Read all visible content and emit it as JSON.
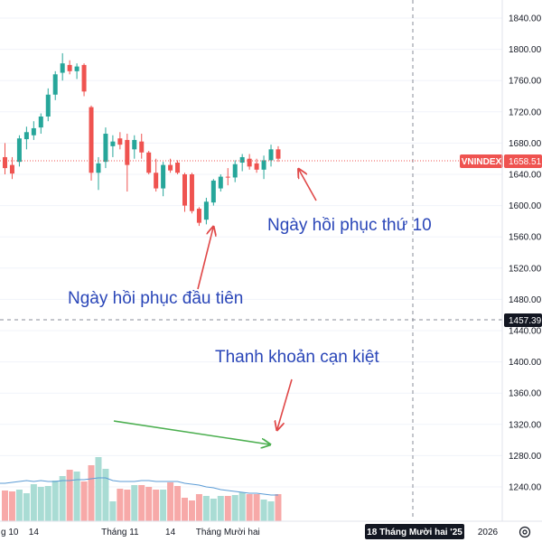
{
  "chart_data": {
    "type": "candlestick",
    "symbol": "VNINDEX",
    "last_price": "1658.51",
    "crosshair_price": "1457.39",
    "crosshair_date": "18 Tháng Mười hai '25",
    "price_ticks": [
      "1840.00",
      "1800.00",
      "1760.00",
      "1720.00",
      "1680.00",
      "1640.00",
      "1600.00",
      "1560.00",
      "1520.00",
      "1480.00",
      "1440.00",
      "1400.00",
      "1360.00",
      "1320.00",
      "1280.00",
      "1240.00"
    ],
    "x_labels": [
      {
        "label": "g 10",
        "index": 0
      },
      {
        "label": "14",
        "index": 4
      },
      {
        "label": "Tháng 11",
        "index": 16
      },
      {
        "label": "14",
        "index": 23
      },
      {
        "label": "Tháng Mười hai",
        "index": 31
      },
      {
        "label": "2026",
        "index": 49
      }
    ],
    "candles": [
      {
        "o": 1662,
        "h": 1680,
        "l": 1640,
        "c": 1648
      },
      {
        "o": 1652,
        "h": 1662,
        "l": 1634,
        "c": 1641
      },
      {
        "o": 1656,
        "h": 1690,
        "l": 1650,
        "c": 1686
      },
      {
        "o": 1685,
        "h": 1701,
        "l": 1672,
        "c": 1694
      },
      {
        "o": 1690,
        "h": 1708,
        "l": 1684,
        "c": 1699
      },
      {
        "o": 1700,
        "h": 1718,
        "l": 1692,
        "c": 1714
      },
      {
        "o": 1714,
        "h": 1750,
        "l": 1708,
        "c": 1742
      },
      {
        "o": 1742,
        "h": 1772,
        "l": 1735,
        "c": 1768
      },
      {
        "o": 1770,
        "h": 1795,
        "l": 1760,
        "c": 1782
      },
      {
        "o": 1780,
        "h": 1786,
        "l": 1768,
        "c": 1772
      },
      {
        "o": 1772,
        "h": 1782,
        "l": 1762,
        "c": 1778
      },
      {
        "o": 1780,
        "h": 1782,
        "l": 1740,
        "c": 1746
      },
      {
        "o": 1726,
        "h": 1728,
        "l": 1632,
        "c": 1642
      },
      {
        "o": 1642,
        "h": 1662,
        "l": 1620,
        "c": 1654
      },
      {
        "o": 1656,
        "h": 1700,
        "l": 1648,
        "c": 1692
      },
      {
        "o": 1676,
        "h": 1690,
        "l": 1662,
        "c": 1682
      },
      {
        "o": 1686,
        "h": 1694,
        "l": 1672,
        "c": 1678
      },
      {
        "o": 1684,
        "h": 1692,
        "l": 1618,
        "c": 1652
      },
      {
        "o": 1672,
        "h": 1690,
        "l": 1660,
        "c": 1684
      },
      {
        "o": 1682,
        "h": 1692,
        "l": 1660,
        "c": 1668
      },
      {
        "o": 1668,
        "h": 1670,
        "l": 1640,
        "c": 1642
      },
      {
        "o": 1642,
        "h": 1660,
        "l": 1618,
        "c": 1622
      },
      {
        "o": 1622,
        "h": 1656,
        "l": 1612,
        "c": 1652
      },
      {
        "o": 1652,
        "h": 1660,
        "l": 1642,
        "c": 1645
      },
      {
        "o": 1655,
        "h": 1658,
        "l": 1640,
        "c": 1642
      },
      {
        "o": 1640,
        "h": 1642,
        "l": 1592,
        "c": 1600
      },
      {
        "o": 1640,
        "h": 1642,
        "l": 1590,
        "c": 1593
      },
      {
        "o": 1596,
        "h": 1598,
        "l": 1574,
        "c": 1578
      },
      {
        "o": 1582,
        "h": 1610,
        "l": 1576,
        "c": 1605
      },
      {
        "o": 1604,
        "h": 1634,
        "l": 1600,
        "c": 1632
      },
      {
        "o": 1622,
        "h": 1640,
        "l": 1618,
        "c": 1637
      },
      {
        "o": 1637,
        "h": 1648,
        "l": 1626,
        "c": 1636
      },
      {
        "o": 1636,
        "h": 1658,
        "l": 1630,
        "c": 1653
      },
      {
        "o": 1655,
        "h": 1666,
        "l": 1644,
        "c": 1662
      },
      {
        "o": 1660,
        "h": 1666,
        "l": 1646,
        "c": 1650
      },
      {
        "o": 1654,
        "h": 1660,
        "l": 1642,
        "c": 1646
      },
      {
        "o": 1646,
        "h": 1664,
        "l": 1634,
        "c": 1658
      },
      {
        "o": 1658,
        "h": 1678,
        "l": 1650,
        "c": 1672
      },
      {
        "o": 1672,
        "h": 1676,
        "l": 1656,
        "c": 1660
      }
    ],
    "volume": [
      0.34,
      0.33,
      0.35,
      0.31,
      0.41,
      0.38,
      0.39,
      0.45,
      0.5,
      0.57,
      0.55,
      0.44,
      0.62,
      0.71,
      0.58,
      0.22,
      0.36,
      0.35,
      0.4,
      0.4,
      0.38,
      0.35,
      0.35,
      0.43,
      0.39,
      0.26,
      0.23,
      0.3,
      0.28,
      0.25,
      0.28,
      0.28,
      0.29,
      0.32,
      0.3,
      0.3,
      0.24,
      0.22,
      0.3
    ],
    "volume_ma": [
      0.42,
      0.43,
      0.44,
      0.45,
      0.44,
      0.45,
      0.44,
      0.44,
      0.45,
      0.45,
      0.46,
      0.46,
      0.47,
      0.48,
      0.48,
      0.45,
      0.44,
      0.44,
      0.44,
      0.45,
      0.45,
      0.44,
      0.44,
      0.44,
      0.44,
      0.42,
      0.41,
      0.4,
      0.38,
      0.37,
      0.35,
      0.34,
      0.33,
      0.32,
      0.31,
      0.31,
      0.3,
      0.29,
      0.29
    ],
    "annotations": {
      "recovery_day_10": "Ngày hồi phục thứ 10",
      "first_recovery_day": "Ngày hồi phục đầu tiên",
      "liquidity_exhausted": "Thanh khoản cạn kiệt"
    },
    "colors": {
      "up": "#26a69a",
      "down": "#ef5350",
      "up_volume": "#a9dcd4",
      "down_volume": "#f7a9a8",
      "volume_ma": "#5b9bd5",
      "price_line": "#ef5350",
      "annotation_text": "#2a46b8",
      "annotation_arrow": "#e04848",
      "trend_arrow": "#4caf50",
      "crosshair_label": "#131722"
    }
  }
}
